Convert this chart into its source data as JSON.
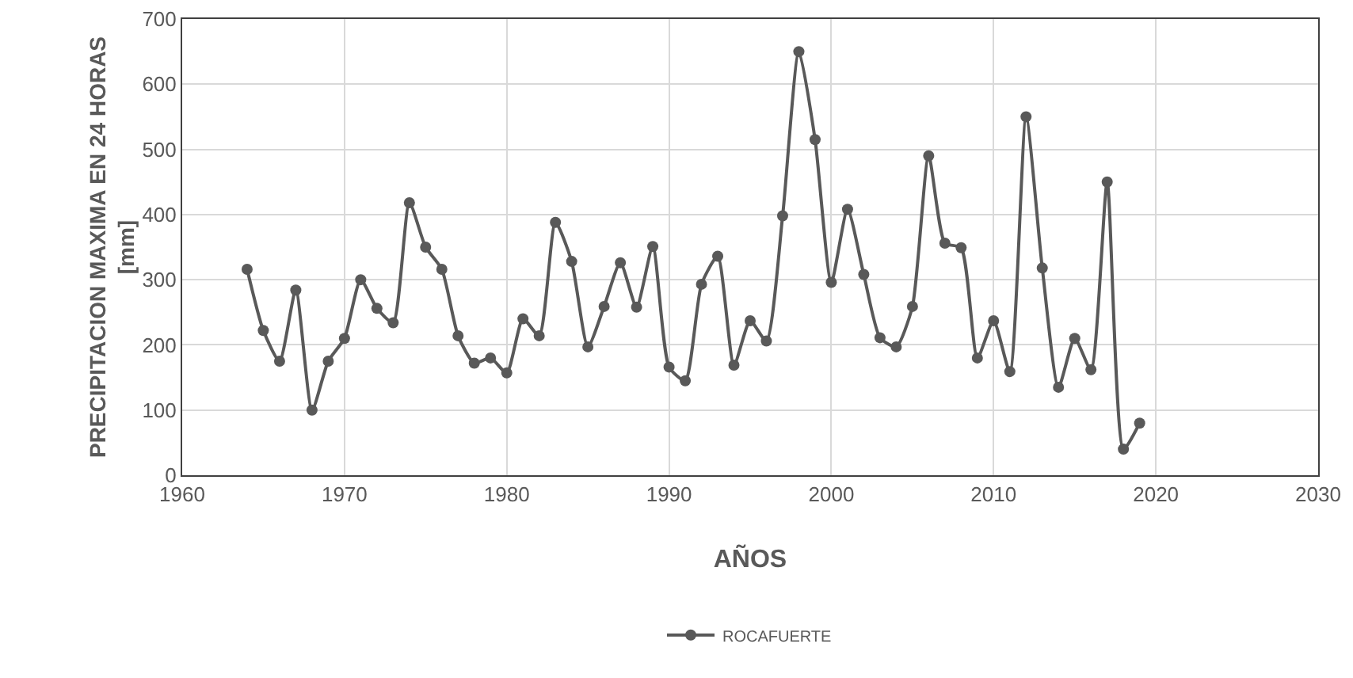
{
  "chart_data": {
    "type": "line",
    "xlabel": "AÑOS",
    "ylabel": "PRECIPITACION MAXIMA EN 24 HORAS [mm]",
    "x": [
      1964,
      1965,
      1966,
      1967,
      1968,
      1969,
      1970,
      1971,
      1972,
      1973,
      1974,
      1975,
      1976,
      1977,
      1978,
      1979,
      1980,
      1981,
      1982,
      1983,
      1984,
      1985,
      1986,
      1987,
      1988,
      1989,
      1990,
      1991,
      1992,
      1993,
      1994,
      1995,
      1996,
      1997,
      1998,
      1999,
      2000,
      2001,
      2002,
      2003,
      2004,
      2005,
      2006,
      2007,
      2008,
      2009,
      2010,
      2011,
      2012,
      2013,
      2014,
      2015,
      2016,
      2017,
      2018,
      2019
    ],
    "series": [
      {
        "name": "ROCAFUERTE",
        "color": "#595959",
        "values": [
          316,
          222,
          175,
          284,
          100,
          175,
          210,
          300,
          256,
          234,
          418,
          350,
          316,
          214,
          172,
          180,
          157,
          240,
          214,
          388,
          328,
          197,
          259,
          326,
          258,
          351,
          166,
          145,
          293,
          336,
          169,
          237,
          206,
          398,
          650,
          515,
          296,
          408,
          308,
          211,
          197,
          259,
          490,
          356,
          349,
          180,
          237,
          159,
          550,
          318,
          135,
          210,
          162,
          450,
          40,
          80
        ]
      }
    ],
    "xlim": [
      1960,
      2030
    ],
    "xticks": [
      1960,
      1970,
      1980,
      1990,
      2000,
      2010,
      2020,
      2030
    ],
    "ylim": [
      0,
      700
    ],
    "yticks": [
      0,
      100,
      200,
      300,
      400,
      500,
      600,
      700
    ],
    "grid": true,
    "legend": "bottom",
    "marker": "circle",
    "line_style": "solid"
  }
}
